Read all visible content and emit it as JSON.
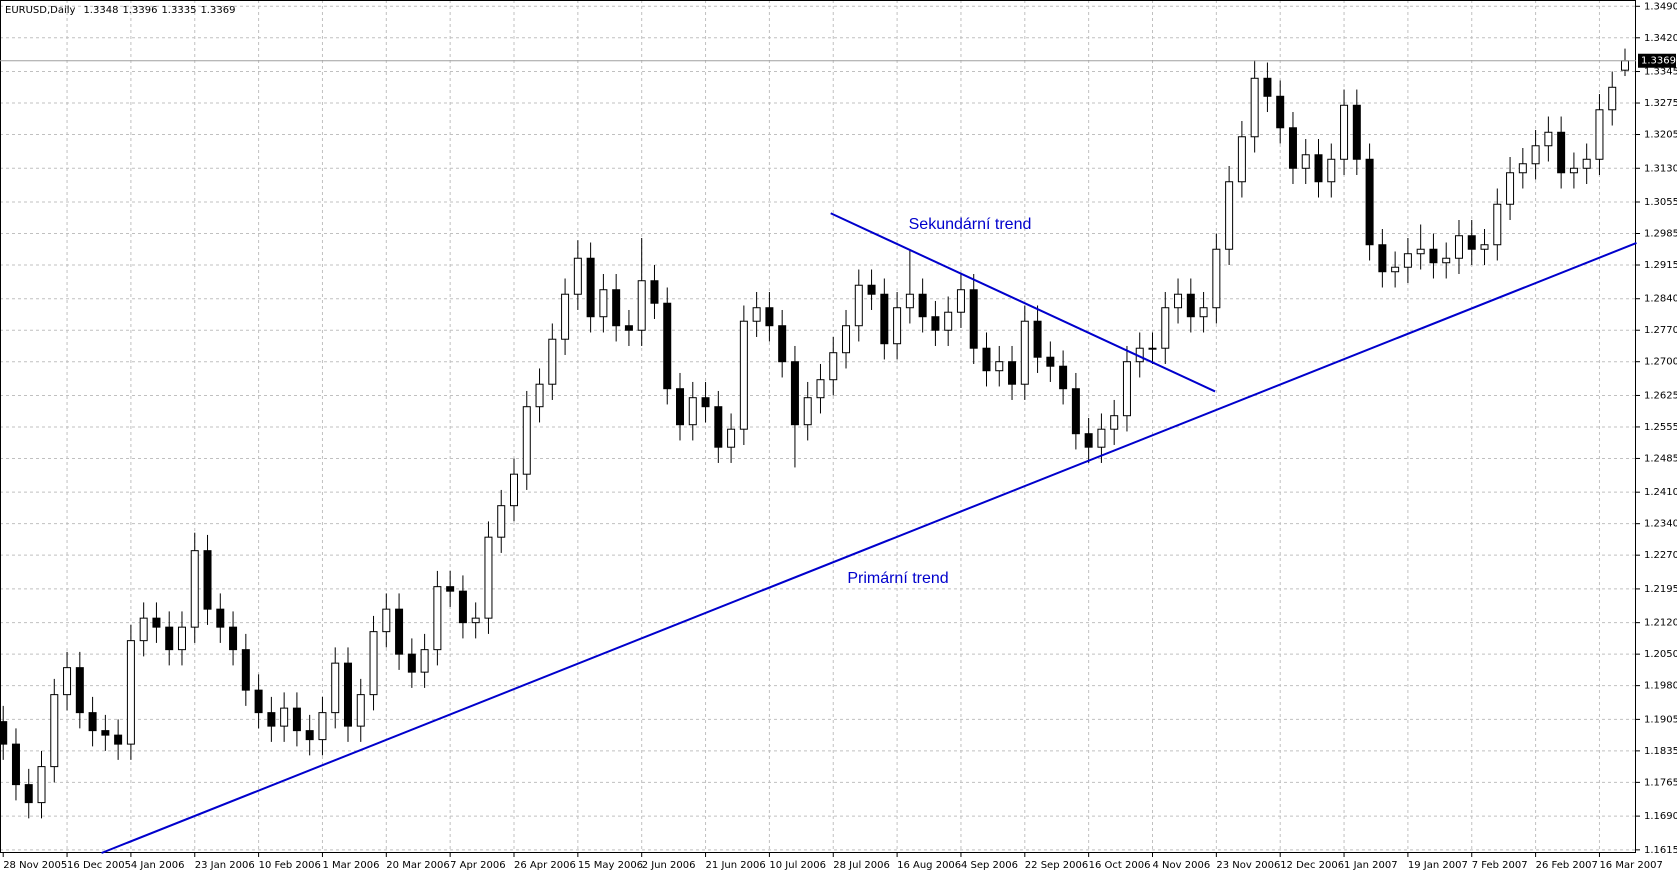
{
  "chart_data": {
    "type": "candlestick",
    "title": "EURUSD,Daily",
    "color": "#000000",
    "up_fill": "#ffffff",
    "down_fill": "#000000",
    "grid": true,
    "grid_color": "#c0c0c0",
    "categories": [
      "28 Nov 2005",
      null,
      null,
      null,
      null,
      "16 Dec 2005",
      null,
      null,
      null,
      null,
      "4 Jan 2006",
      null,
      null,
      null,
      null,
      "23 Jan 2006",
      null,
      null,
      null,
      null,
      "10 Feb 2006",
      null,
      null,
      null,
      null,
      "1 Mar 2006",
      null,
      null,
      null,
      null,
      "20 Mar 2006",
      null,
      null,
      null,
      null,
      "7 Apr 2006",
      null,
      null,
      null,
      null,
      "26 Apr 2006",
      null,
      null,
      null,
      null,
      "15 May 2006",
      null,
      null,
      null,
      null,
      "2 Jun 2006",
      null,
      null,
      null,
      null,
      "21 Jun 2006",
      null,
      null,
      null,
      null,
      "10 Jul 2006",
      null,
      null,
      null,
      null,
      "28 Jul 2006",
      null,
      null,
      null,
      null,
      "16 Aug 2006",
      null,
      null,
      null,
      null,
      "4 Sep 2006",
      null,
      null,
      null,
      null,
      "22 Sep 2006",
      null,
      null,
      null,
      null,
      "16 Oct 2006",
      null,
      null,
      null,
      null,
      "4 Nov 2006",
      null,
      null,
      null,
      null,
      "23 Nov 2006",
      null,
      null,
      null,
      null,
      "12 Dec 2006",
      null,
      null,
      null,
      null,
      "1 Jan 2007",
      null,
      null,
      null,
      null,
      "19 Jan 2007",
      null,
      null,
      null,
      null,
      "7 Feb 2007",
      null,
      null,
      null,
      null,
      "26 Feb 2007",
      null,
      null,
      null,
      null,
      "16 Mar 2007",
      null,
      null
    ],
    "open": [
      1.19,
      1.185,
      1.176,
      1.172,
      1.18,
      1.196,
      1.202,
      1.192,
      1.188,
      1.187,
      1.185,
      1.208,
      1.213,
      1.211,
      1.206,
      1.211,
      1.228,
      1.215,
      1.211,
      1.206,
      1.197,
      1.192,
      1.189,
      1.193,
      1.188,
      1.186,
      1.192,
      1.203,
      1.189,
      1.196,
      1.21,
      1.215,
      1.205,
      1.201,
      1.206,
      1.22,
      1.219,
      1.212,
      1.213,
      1.231,
      1.238,
      1.245,
      1.26,
      1.265,
      1.275,
      1.285,
      1.293,
      1.28,
      1.286,
      1.278,
      1.277,
      1.288,
      1.283,
      1.264,
      1.256,
      1.262,
      1.26,
      1.251,
      1.255,
      1.279,
      1.282,
      1.278,
      1.27,
      1.256,
      1.262,
      1.266,
      1.272,
      1.278,
      1.287,
      1.285,
      1.274,
      1.282,
      1.285,
      1.28,
      1.277,
      1.281,
      1.286,
      1.273,
      1.268,
      1.27,
      1.265,
      1.279,
      1.271,
      1.269,
      1.264,
      1.254,
      1.251,
      1.255,
      1.258,
      1.27,
      1.273,
      1.273,
      1.282,
      1.285,
      1.28,
      1.282,
      1.295,
      1.31,
      1.32,
      1.333,
      1.329,
      1.322,
      1.313,
      1.316,
      1.31,
      1.315,
      1.327,
      1.315,
      1.296,
      1.29,
      1.291,
      1.294,
      1.295,
      1.292,
      1.293,
      1.298,
      1.295,
      1.296,
      1.305,
      1.312,
      1.314,
      1.318,
      1.321,
      1.312,
      1.313,
      1.315,
      1.326,
      1.3348
    ],
    "high": [
      1.1935,
      1.1885,
      1.1795,
      1.1835,
      1.1995,
      1.2055,
      1.2055,
      1.1955,
      1.1915,
      1.1905,
      1.2115,
      1.2165,
      1.2165,
      1.2145,
      1.2145,
      1.232,
      1.2315,
      1.2185,
      1.2145,
      1.2095,
      1.2005,
      1.1955,
      1.1965,
      1.1965,
      1.1915,
      1.1955,
      1.2065,
      1.2065,
      1.1995,
      1.2135,
      1.2185,
      1.2185,
      1.2085,
      1.2095,
      1.2235,
      1.2235,
      1.2225,
      1.2165,
      1.2345,
      1.2415,
      1.2485,
      1.2635,
      1.2685,
      1.2785,
      1.2885,
      1.297,
      1.2965,
      1.2895,
      1.2895,
      1.2815,
      1.2975,
      1.2915,
      1.2865,
      1.2675,
      1.2655,
      1.2655,
      1.2635,
      1.2585,
      1.2825,
      1.2855,
      1.2855,
      1.2815,
      1.2735,
      1.2655,
      1.2695,
      1.2755,
      1.2815,
      1.2905,
      1.2905,
      1.2885,
      1.2855,
      1.295,
      1.2885,
      1.2835,
      1.2845,
      1.2895,
      1.2895,
      1.2765,
      1.2735,
      1.2735,
      1.2825,
      1.2825,
      1.2745,
      1.2725,
      1.2675,
      1.2575,
      1.2585,
      1.2615,
      1.2735,
      1.2765,
      1.2765,
      1.2855,
      1.2885,
      1.2885,
      1.2855,
      1.2985,
      1.3135,
      1.3235,
      1.337,
      1.3365,
      1.3325,
      1.3255,
      1.3195,
      1.3195,
      1.3185,
      1.3305,
      1.3305,
      1.3185,
      1.2995,
      1.2945,
      1.2975,
      1.3005,
      1.2985,
      1.2965,
      1.3015,
      1.3015,
      1.2995,
      1.3085,
      1.3155,
      1.3175,
      1.3215,
      1.3245,
      1.3245,
      1.3165,
      1.3185,
      1.3295,
      1.3345,
      1.3396
    ],
    "low": [
      1.1815,
      1.1725,
      1.1685,
      1.1685,
      1.1765,
      1.1925,
      1.1885,
      1.1845,
      1.1835,
      1.1815,
      1.1815,
      1.2045,
      1.2075,
      1.2025,
      1.2025,
      1.2075,
      1.2115,
      1.2075,
      1.2025,
      1.1935,
      1.1885,
      1.1855,
      1.1855,
      1.1845,
      1.1825,
      1.1825,
      1.1885,
      1.1855,
      1.1855,
      1.1925,
      1.2065,
      1.2015,
      1.1975,
      1.1975,
      1.2025,
      1.2155,
      1.2085,
      1.2085,
      1.2095,
      1.2275,
      1.2345,
      1.2415,
      1.2565,
      1.2615,
      1.2715,
      1.2815,
      1.2765,
      1.2765,
      1.2745,
      1.2735,
      1.2735,
      1.2795,
      1.2605,
      1.2525,
      1.2525,
      1.2565,
      1.2475,
      1.2475,
      1.2515,
      1.2755,
      1.2745,
      1.2665,
      1.2465,
      1.2525,
      1.2585,
      1.2625,
      1.2685,
      1.2745,
      1.2815,
      1.2705,
      1.2705,
      1.2785,
      1.2765,
      1.2735,
      1.2735,
      1.2775,
      1.2695,
      1.2645,
      1.2645,
      1.2615,
      1.2615,
      1.2675,
      1.2655,
      1.2605,
      1.2505,
      1.2475,
      1.2475,
      1.2515,
      1.2545,
      1.2665,
      1.2695,
      1.2695,
      1.2785,
      1.2765,
      1.2765,
      1.2785,
      1.2915,
      1.3065,
      1.3165,
      1.3255,
      1.3185,
      1.3095,
      1.3095,
      1.3065,
      1.3065,
      1.3115,
      1.3115,
      1.2925,
      1.2865,
      1.2865,
      1.2875,
      1.2905,
      1.2885,
      1.2885,
      1.2895,
      1.2915,
      1.2915,
      1.2925,
      1.3015,
      1.3085,
      1.3105,
      1.3145,
      1.3085,
      1.3085,
      1.3095,
      1.3115,
      1.3225,
      1.3335
    ],
    "close": [
      1.185,
      1.176,
      1.172,
      1.18,
      1.196,
      1.202,
      1.192,
      1.188,
      1.187,
      1.185,
      1.208,
      1.213,
      1.211,
      1.206,
      1.211,
      1.228,
      1.215,
      1.211,
      1.206,
      1.197,
      1.192,
      1.189,
      1.193,
      1.188,
      1.186,
      1.192,
      1.203,
      1.189,
      1.196,
      1.21,
      1.215,
      1.205,
      1.201,
      1.206,
      1.22,
      1.219,
      1.212,
      1.213,
      1.231,
      1.238,
      1.245,
      1.26,
      1.265,
      1.275,
      1.285,
      1.293,
      1.28,
      1.286,
      1.278,
      1.277,
      1.288,
      1.283,
      1.264,
      1.256,
      1.262,
      1.26,
      1.251,
      1.255,
      1.279,
      1.282,
      1.278,
      1.27,
      1.256,
      1.262,
      1.266,
      1.272,
      1.278,
      1.287,
      1.285,
      1.274,
      1.282,
      1.285,
      1.28,
      1.277,
      1.281,
      1.286,
      1.273,
      1.268,
      1.27,
      1.265,
      1.279,
      1.271,
      1.269,
      1.264,
      1.254,
      1.251,
      1.255,
      1.258,
      1.27,
      1.273,
      1.273,
      1.282,
      1.285,
      1.28,
      1.282,
      1.295,
      1.31,
      1.32,
      1.333,
      1.329,
      1.322,
      1.313,
      1.316,
      1.31,
      1.315,
      1.327,
      1.315,
      1.296,
      1.29,
      1.291,
      1.294,
      1.295,
      1.292,
      1.293,
      1.298,
      1.295,
      1.296,
      1.305,
      1.312,
      1.314,
      1.318,
      1.321,
      1.312,
      1.313,
      1.315,
      1.326,
      1.331,
      1.3369
    ],
    "ylim": [
      1.1608,
      1.3504
    ],
    "yticks": [
      1.1615,
      {
        "value": 1.169,
        "label": "1.1690"
      },
      1.1765,
      1.1835,
      1.1905,
      {
        "value": 1.198,
        "label": "1.1980"
      },
      {
        "value": 1.205,
        "label": "1.2050"
      },
      {
        "value": 1.212,
        "label": "1.2120"
      },
      1.2195,
      {
        "value": 1.227,
        "label": "1.2270"
      },
      {
        "value": 1.234,
        "label": "1.2340"
      },
      {
        "value": 1.241,
        "label": "1.2410"
      },
      1.2485,
      1.2555,
      1.2625,
      {
        "value": 1.27,
        "label": "1.2700"
      },
      {
        "value": 1.277,
        "label": "1.2770"
      },
      {
        "value": 1.284,
        "label": "1.2840"
      },
      1.2915,
      1.2985,
      1.3055,
      {
        "value": 1.313,
        "label": "1.3130"
      },
      1.3205,
      1.3275,
      1.3345,
      {
        "value": 1.342,
        "label": "1.3420"
      },
      {
        "value": 1.349,
        "label": "1.3490"
      }
    ],
    "annotations": [
      {
        "text": "Sekundární trend",
        "x": [
          64.8,
          94.9
        ],
        "y": [
          1.303,
          1.2634
        ],
        "color": "#0000cc"
      },
      {
        "text": "Primární trend",
        "x": [
          7.7,
          127.9
        ],
        "y": [
          1.1608,
          1.2964
        ],
        "color": "#0000cc"
      }
    ]
  }
}
